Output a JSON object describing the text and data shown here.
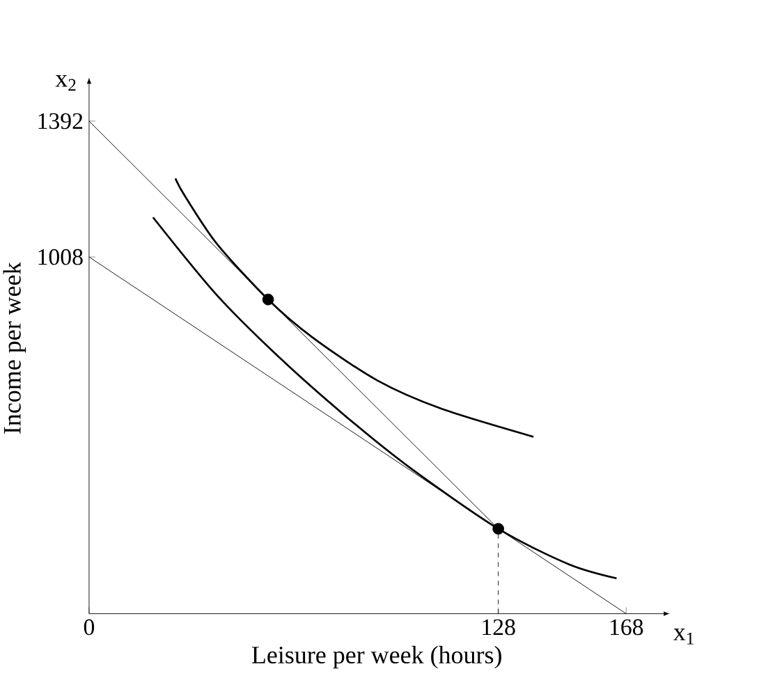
{
  "chart_data": {
    "type": "line",
    "xlabel": "Leisure per week (hours)",
    "ylabel": "Income per week",
    "xlim": [
      0,
      180
    ],
    "ylim": [
      0,
      1500
    ],
    "xticks": [
      0,
      128,
      168
    ],
    "yticks": [
      1008,
      1392
    ],
    "annotations": [
      "x$_{1}$",
      "x$_{2}$"
    ],
    "series": [
      {
        "color": "#000000",
        "x": [
          0,
          168
        ],
        "values": [
          1008,
          0
        ]
      },
      {
        "color": "#000000",
        "x": [
          0,
          128
        ],
        "values": [
          1392,
          240
        ]
      },
      {
        "color": "#000000",
        "x": [
          20,
          40,
          60,
          80,
          100,
          128,
          150,
          165
        ],
        "values": [
          1120,
          900,
          720,
          560,
          415,
          240,
          140,
          100
        ]
      },
      {
        "color": "#000000",
        "x": [
          27,
          30,
          40,
          56,
          70,
          90,
          110,
          139
        ],
        "values": [
          1230,
          1180,
          1045,
          888,
          780,
          660,
          580,
          500
        ]
      },
      {
        "color": "#000000",
        "line_style": "dashed",
        "x": [
          128,
          128
        ],
        "values": [
          0,
          240
        ]
      },
      {
        "type": "scatter",
        "marker": "circle",
        "color": "#000000",
        "x": [
          56,
          128
        ],
        "values": [
          888,
          240
        ]
      }
    ]
  }
}
